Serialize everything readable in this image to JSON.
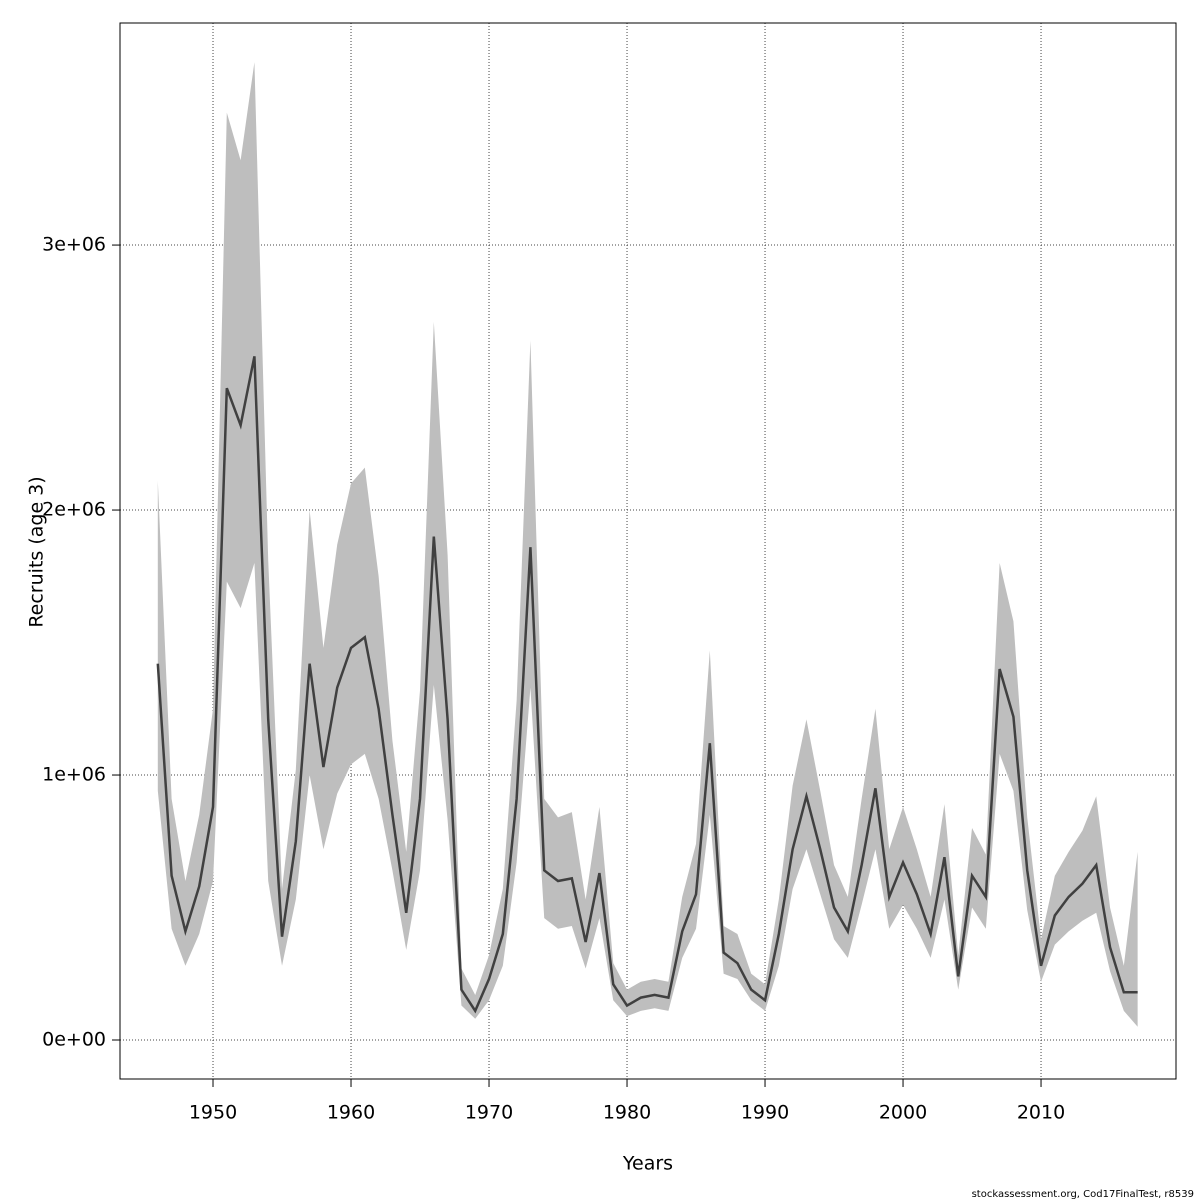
{
  "chart_data": {
    "type": "line",
    "x_label": "Years",
    "y_label": "Recruits (age 3)",
    "footnote": "stockassessment.org, Cod17FinalTest, r8539",
    "x": [
      1946,
      1947,
      1948,
      1949,
      1950,
      1951,
      1952,
      1953,
      1954,
      1955,
      1956,
      1957,
      1958,
      1959,
      1960,
      1961,
      1962,
      1963,
      1964,
      1965,
      1966,
      1967,
      1968,
      1969,
      1970,
      1971,
      1972,
      1973,
      1974,
      1975,
      1976,
      1977,
      1978,
      1979,
      1980,
      1981,
      1982,
      1983,
      1984,
      1985,
      1986,
      1987,
      1988,
      1989,
      1990,
      1991,
      1992,
      1993,
      1994,
      1995,
      1996,
      1997,
      1998,
      1999,
      2000,
      2001,
      2002,
      2003,
      2004,
      2005,
      2006,
      2007,
      2008,
      2009,
      2010,
      2011,
      2012,
      2013,
      2014,
      2015,
      2016,
      2017
    ],
    "values": [
      1420000,
      620000,
      410000,
      580000,
      880000,
      2460000,
      2320000,
      2580000,
      1210000,
      390000,
      750000,
      1420000,
      1030000,
      1330000,
      1480000,
      1520000,
      1250000,
      850000,
      480000,
      910000,
      1900000,
      1210000,
      190000,
      110000,
      230000,
      400000,
      910000,
      1860000,
      640000,
      600000,
      610000,
      370000,
      630000,
      210000,
      130000,
      160000,
      170000,
      160000,
      410000,
      550000,
      1120000,
      330000,
      290000,
      190000,
      150000,
      400000,
      720000,
      920000,
      720000,
      500000,
      410000,
      660000,
      950000,
      540000,
      670000,
      550000,
      400000,
      690000,
      240000,
      620000,
      540000,
      1400000,
      1220000,
      640000,
      280000,
      470000,
      540000,
      590000,
      660000,
      350000,
      180000,
      180000
    ],
    "lower": [
      940000,
      420000,
      280000,
      400000,
      600000,
      1730000,
      1630000,
      1800000,
      600000,
      280000,
      530000,
      1000000,
      720000,
      930000,
      1040000,
      1080000,
      910000,
      640000,
      340000,
      640000,
      1340000,
      830000,
      130000,
      80000,
      150000,
      280000,
      670000,
      1330000,
      460000,
      420000,
      430000,
      270000,
      460000,
      150000,
      90000,
      110000,
      120000,
      110000,
      310000,
      420000,
      850000,
      250000,
      230000,
      150000,
      110000,
      280000,
      570000,
      720000,
      550000,
      380000,
      310000,
      510000,
      720000,
      420000,
      510000,
      420000,
      310000,
      530000,
      190000,
      500000,
      420000,
      1080000,
      940000,
      490000,
      220000,
      360000,
      410000,
      450000,
      480000,
      260000,
      110000,
      50000
    ],
    "upper": [
      2110000,
      910000,
      600000,
      850000,
      1250000,
      3500000,
      3320000,
      3690000,
      1810000,
      570000,
      1020000,
      2000000,
      1480000,
      1870000,
      2100000,
      2160000,
      1750000,
      1130000,
      710000,
      1320000,
      2710000,
      1830000,
      270000,
      170000,
      320000,
      570000,
      1280000,
      2640000,
      910000,
      840000,
      860000,
      530000,
      880000,
      290000,
      190000,
      220000,
      230000,
      220000,
      540000,
      740000,
      1470000,
      430000,
      400000,
      250000,
      210000,
      530000,
      960000,
      1210000,
      940000,
      660000,
      540000,
      910000,
      1250000,
      720000,
      880000,
      720000,
      540000,
      890000,
      320000,
      800000,
      700000,
      1800000,
      1580000,
      840000,
      380000,
      620000,
      710000,
      790000,
      920000,
      500000,
      280000,
      710000
    ],
    "color": "#404040",
    "band_color": "#bebebe",
    "xlim": [
      1943.26,
      2019.78
    ],
    "ylim": [
      -147170,
      3838000
    ],
    "xticks": [
      1950,
      1960,
      1970,
      1980,
      1990,
      2000,
      2010
    ],
    "yticks": [
      {
        "value": 0,
        "label": "0e+00"
      },
      {
        "value": 1000000,
        "label": "1e+06"
      },
      {
        "value": 2000000,
        "label": "2e+06"
      },
      {
        "value": 3000000,
        "label": "3e+06"
      }
    ],
    "grid": true
  }
}
